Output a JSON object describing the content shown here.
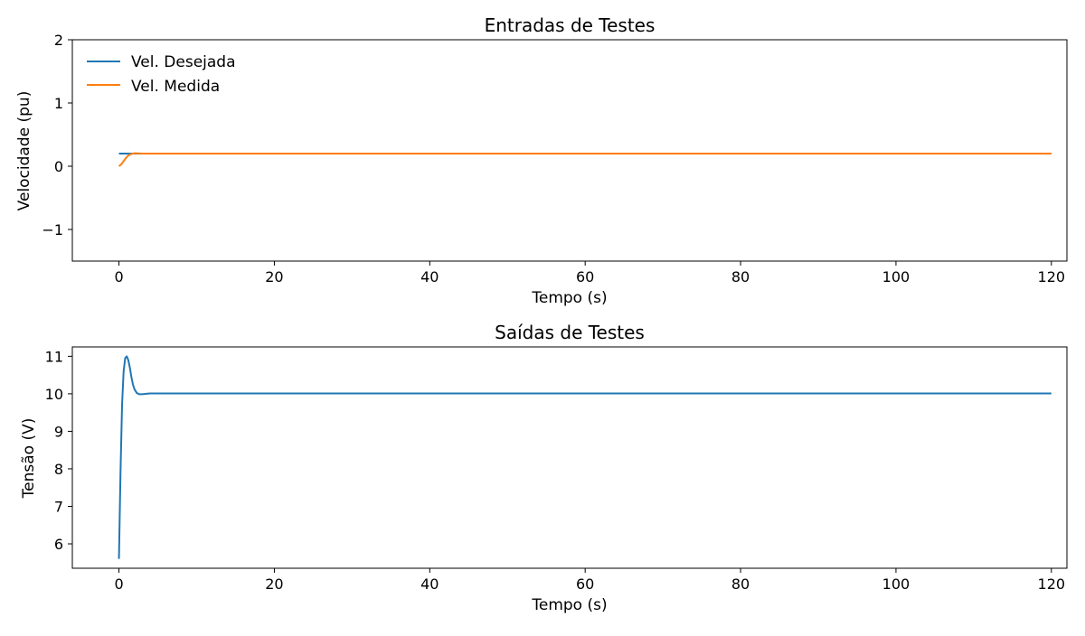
{
  "colors": {
    "series_blue": "#1f77b4",
    "series_orange": "#ff7f0e",
    "axes": "#000000",
    "background": "#ffffff"
  },
  "chart_data": [
    {
      "type": "line",
      "title": "Entradas de Testes",
      "xlabel": "Tempo (s)",
      "ylabel": "Velocidade (pu)",
      "xlim": [
        -6,
        122
      ],
      "ylim": [
        -1.5,
        2
      ],
      "xticks": [
        0,
        20,
        40,
        60,
        80,
        100,
        120
      ],
      "xtick_labels": [
        "0",
        "20",
        "40",
        "60",
        "80",
        "100",
        "120"
      ],
      "yticks": [
        -1,
        0,
        1,
        2
      ],
      "ytick_labels": [
        "−1",
        "0",
        "1",
        "2"
      ],
      "grid": false,
      "legend": "top-left",
      "series": [
        {
          "name": "Vel. Desejada",
          "color": "#1f77b4",
          "x": [
            0,
            120
          ],
          "y": [
            0.2,
            0.2
          ]
        },
        {
          "name": "Vel. Medida",
          "color": "#ff7f0e",
          "x": [
            0,
            0.3,
            0.6,
            0.9,
            1.2,
            1.5,
            2.0,
            2.5,
            3.0,
            4.0,
            6.0,
            120
          ],
          "y": [
            0.0,
            0.03,
            0.08,
            0.13,
            0.17,
            0.19,
            0.205,
            0.203,
            0.2,
            0.2,
            0.2,
            0.2
          ]
        }
      ]
    },
    {
      "type": "line",
      "title": "Saídas de Testes",
      "xlabel": "Tempo (s)",
      "ylabel": "Tensão (V)",
      "xlim": [
        -6,
        122
      ],
      "ylim": [
        5.35,
        11.25
      ],
      "xticks": [
        0,
        20,
        40,
        60,
        80,
        100,
        120
      ],
      "xtick_labels": [
        "0",
        "20",
        "40",
        "60",
        "80",
        "100",
        "120"
      ],
      "yticks": [
        6,
        7,
        8,
        9,
        10,
        11
      ],
      "ytick_labels": [
        "6",
        "7",
        "8",
        "9",
        "10",
        "11"
      ],
      "grid": false,
      "series": [
        {
          "color": "#1f77b4",
          "x": [
            0,
            0.2,
            0.4,
            0.6,
            0.8,
            1.0,
            1.2,
            1.4,
            1.6,
            1.8,
            2.0,
            2.3,
            2.6,
            3.0,
            3.5,
            4.0,
            5.0,
            7.0,
            120
          ],
          "y": [
            5.6,
            7.9,
            9.7,
            10.6,
            10.95,
            11.0,
            10.9,
            10.7,
            10.45,
            10.25,
            10.12,
            10.02,
            9.99,
            9.99,
            10.0,
            10.01,
            10.01,
            10.01,
            10.01
          ]
        }
      ]
    }
  ]
}
